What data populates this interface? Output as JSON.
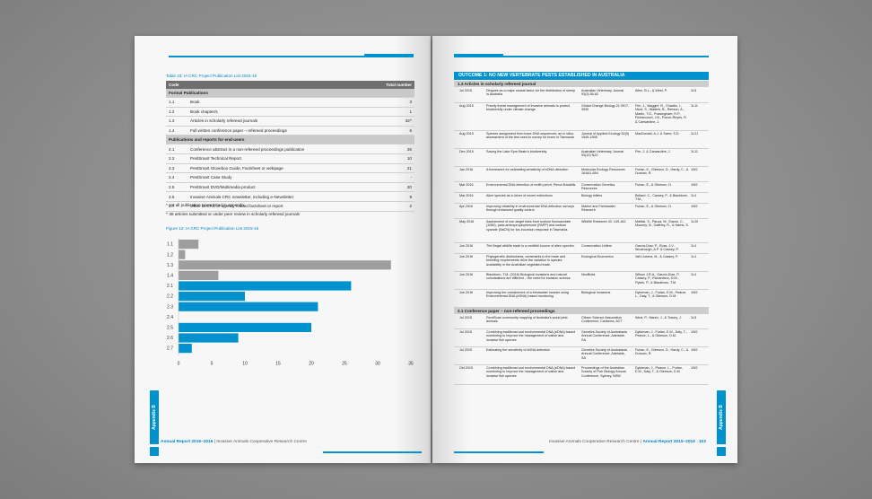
{
  "left_page": {
    "table_caption": "Table 23: IA CRC Project Publication List 2015-16",
    "table_headers": {
      "code": "Code",
      "total": "Total number"
    },
    "sections": [
      {
        "title": "Formal Publications",
        "rows": [
          {
            "code": "1.1",
            "label": "Book",
            "value": "3"
          },
          {
            "code": "1.2",
            "label": "Book chapter/s",
            "value": "1"
          },
          {
            "code": "1.3",
            "label": "Articles in scholarly refereed journals",
            "value": "32^"
          },
          {
            "code": "1.4",
            "label": "Full written conference paper – refereed proceedings",
            "value": "6"
          }
        ]
      },
      {
        "title": "Publications and reports for end-users",
        "rows": [
          {
            "code": "2.1",
            "label": "Conference abstract in a non-refereed proceedings publication",
            "value": "26"
          },
          {
            "code": "2.2",
            "label": "PestSmart Technical Report",
            "value": "10"
          },
          {
            "code": "2.3",
            "label": "PestSmart Glovebox Guide, Factsheet or webpage",
            "value": "21"
          },
          {
            "code": "2.4",
            "label": "PestSmart Case Study",
            "value": "-"
          },
          {
            "code": "2.5",
            "label": "PestSmart DVD/Multimedia product",
            "value": "20"
          },
          {
            "code": "2.6",
            "label": "Invasive Animals CRC newsletter, including e-Newsletter",
            "value": "9"
          },
          {
            "code": "2.7",
            "label": "Other IA CRC or agency related factsheet or report",
            "value": "2"
          }
        ]
      }
    ],
    "notes": [
      "* not all publication types listed in appendix",
      "^ 38 articles submitted or under peer review in scholarly refereed journals"
    ],
    "figure_caption": "Figure 12: IA CRC Project Publication List 2015-16",
    "appendix_tab": "Appendix B",
    "page_number": "102",
    "footer_title": "Annual Report 2015–2016",
    "footer_org": "Invasive Animals Cooperative Research Centre"
  },
  "chart_data": {
    "type": "bar",
    "orientation": "horizontal",
    "categories": [
      "1.1",
      "1.2",
      "1.3",
      "1.4",
      "2.1",
      "2.2",
      "2.3",
      "2.4",
      "2.5",
      "2.6",
      "2.7"
    ],
    "values": [
      3,
      1,
      32,
      6,
      26,
      10,
      21,
      0,
      20,
      9,
      2
    ],
    "colors": [
      "#9e9e9e",
      "#9e9e9e",
      "#9e9e9e",
      "#9e9e9e",
      "#0092cf",
      "#0092cf",
      "#0092cf",
      "#0092cf",
      "#0092cf",
      "#0092cf",
      "#0092cf"
    ],
    "xlim": [
      0,
      35
    ],
    "xticks": [
      0,
      5,
      10,
      15,
      20,
      25,
      30,
      35
    ],
    "grid": false
  },
  "right_page": {
    "outcome_title": "OUTCOME 1: NO NEW VERTEBRATE PESTS ESTABLISHED IN AUSTRALIA",
    "sections": [
      {
        "title": "1.3 Articles in scholarly refereed journal",
        "rows": [
          {
            "date": "Jul 2015",
            "title": "Dingoes as a major causal factor for the distribution of sheep in Australia",
            "journal": "Australian Veterinary Journal 93(3) 56-62",
            "authors": "Allen, B.L., & West, P.",
            "code": "1L5"
          },
          {
            "date": "Aug 2015",
            "title": "Priority threat management of invasive animals to protect biodiversity under climate change",
            "journal": "Global Change Biology 21:3917-3930",
            "authors": "Firn, J., Maggini, R., Chadès, I., Nicol, S., Walters, B., Reeson, A., Martin, T.G., Possingham, H.P., Pichancourt, J.B., Ponce-Reyes, R. & Carwardine, J.",
            "code": "1L11"
          },
          {
            "date": "Aug 2015",
            "title": "Species assignment from trace DNA sequences: an in silico assessment of the test used to survey for foxes in Tasmania",
            "journal": "Journal of Applied Ecology 52(5) 1549-1558",
            "authors": "MacDonald, A.J. & Sarre, S.D.",
            "code": "1L21"
          },
          {
            "date": "Dec 2015",
            "title": "Saving the Lake Eyre Basin's biodiversity",
            "journal": "Australian Veterinary Journal 93(12) N22",
            "authors": "Firn, J. & Carwardine, J.",
            "code": "1L11"
          },
          {
            "date": "Jan 2016",
            "title": "A framework for estimating sensitivity of eDNA detection",
            "journal": "Molecular Ecology Resources 16:641-654",
            "authors": "Furlan, E., Gleeson, D., Hardy, C., & Duncan, R.",
            "code": "1W2"
          },
          {
            "date": "Mar 2016",
            "title": "Environmental DNA detection of redfin perch, Perca fluviatilis",
            "journal": "Conservation Genetics Resources",
            "authors": "Furlan, E., & Gleeson, D.",
            "code": "1W2"
          },
          {
            "date": "Mar 2016",
            "title": "Alien species as a driver of recent extinctions",
            "journal": "Biology letters",
            "authors": "Bellard, C., Cassey, P., & Blackburn, T.M.,",
            "code": "1L4"
          },
          {
            "date": "Apr 2016",
            "title": "Improving reliability in environmental DNA detection surveys through enhanced quality control.",
            "journal": "Marine and Freshwater Research",
            "authors": "Furlan, E., & Gleeson, D.",
            "code": "1W2"
          },
          {
            "date": "May 2016",
            "title": "Assessment of non-target risks from sodium fluoroacetate (1080), para-aminopropiophenone (PAPP) and sodium cyanide (NaCN) for fox-incursion response in Tasmania.",
            "journal": "Wildlife Research 43, 149-162.",
            "authors": "Mallick, S., Pauza, M., Eason, C., Mooney, N., Gaffney, R., & Harris, S.",
            "code": "1L20"
          },
          {
            "date": "Jun 2016",
            "title": "The illegal wildlife trade is a credible source of alien species.",
            "journal": "Conservation Letters",
            "authors": "García-Díaz, P., Ross, J.V., Woolnough, A.P. & Cassey, P.",
            "code": "1L4"
          },
          {
            "date": "Jun 2016",
            "title": "Phylogenetic distinctness, constraints to the trade and breeding requirements drive the variation in species availability in the Australian vegetated trade.",
            "journal": "Ecological Economics",
            "authors": "Vall-Llosera, M., & Cassey, P.",
            "code": "1L4"
          },
          {
            "date": "Jun 2016",
            "title": "Blackburn, T.M. (2016) Biological invasions and natural colonisations are different – the need for invasion science",
            "journal": "NeoBiota",
            "authors": "Wilson J.R.U., García-Díaz, P., Cassey, P., Richardson, D.M., Pyšek, P., & Blackburn, T.M.",
            "code": "1L4"
          },
          {
            "date": "Jun 2016",
            "title": "Improving the containment of a freshwater invader using Environmental DNA (eDNA) based monitoring",
            "journal": "Biological Invasions",
            "authors": "Dykeman, J., Furlan, E.M., Pearce, L., Daly, T., & Gleeson, D.M.",
            "code": "1W2"
          }
        ]
      },
      {
        "title": "2.1 Conference paper – non-refereed proceedings",
        "rows": [
          {
            "date": "Jul 2015",
            "title": "FeralScan community mapping of Australia's worst pest animals",
            "journal": "Citizen Science Association Conference, Canberra, ACT",
            "authors": "West, P., Marsh, J., & Tracey, J.",
            "code": "1L5"
          },
          {
            "date": "Jul 2015",
            "title": "Combining traditional and environmental DNA (eDNA) based monitoring to improve the management of native and invasive fish species",
            "journal": "Genetics Society of Australasia Annual Conference, Adelaide, SA",
            "authors": "Dykeman, J., Furlan, E.M., Daly, T., Pearce, L., & Gleeson, D.M.",
            "code": "1W2"
          },
          {
            "date": "Jul 2015",
            "title": "Estimating the sensitivity of eDNA detection",
            "journal": "Genetics Society of Australasia Annual Conference, Adelaide, SA",
            "authors": "Furlan, E., Gleeson, D., Hardy, C., & Duncan, R.",
            "code": "1W2"
          },
          {
            "date": "Oct 2015",
            "title": "Combining traditional and environmental DNA (eDNA) based monitoring to improve the management of native and invasive fish species",
            "journal": "Proceedings of the Australian Society of Fish Biology Annual Conference, Sydney, NSW",
            "authors": "Dykeman, J., Pearce, L., Furlan, E.M., Daly, T., & Gleeson, D.M.",
            "code": "1W2"
          }
        ]
      }
    ],
    "appendix_tab": "Appendix B",
    "page_number": "103",
    "footer_org": "Invasive Animals Cooperative Research Centre",
    "footer_title": "Annual Report 2015–2016"
  }
}
